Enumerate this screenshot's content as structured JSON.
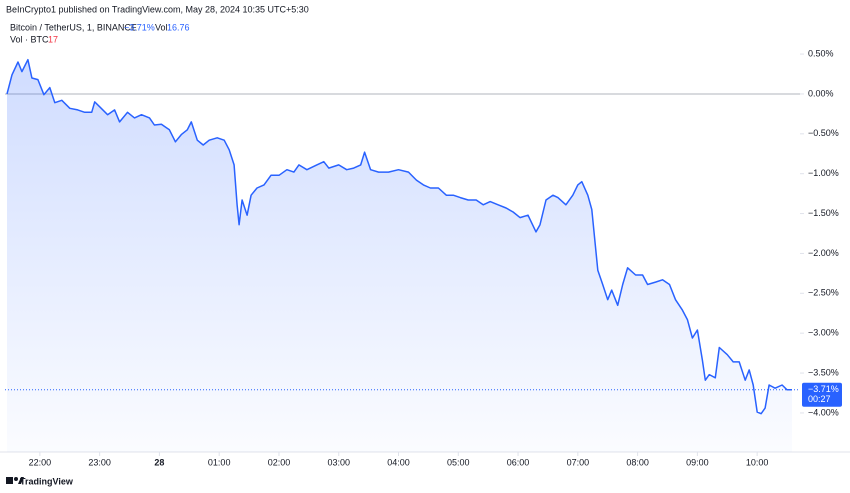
{
  "header": {
    "publisher": "BeInCrypto1 published on TradingView.com, May 28, 2024 10:35 UTC+5:30",
    "symbol": "Bitcoin / TetherUS, 1, BINANCE",
    "change": "−3.71%",
    "vol_label": "Vol",
    "vol_value": "16.76",
    "volume_label": "Vol · BTC",
    "volume_value": "17"
  },
  "chart_data": {
    "type": "area",
    "color": "#2962ff",
    "x": [
      "21:27",
      "21:32",
      "21:38",
      "21:42",
      "21:48",
      "21:52",
      "21:58",
      "22:04",
      "22:10",
      "22:15",
      "22:22",
      "22:30",
      "22:38",
      "22:45",
      "22:52",
      "22:55",
      "23:00",
      "23:08",
      "23:15",
      "23:20",
      "23:28",
      "23:35",
      "23:42",
      "23:50",
      "23:55",
      "00:02",
      "00:10",
      "00:16",
      "00:22",
      "00:28",
      "00:32",
      "00:38",
      "00:44",
      "00:50",
      "00:58",
      "01:05",
      "01:10",
      "01:15",
      "01:18",
      "01:20",
      "01:23",
      "01:28",
      "01:32",
      "01:38",
      "01:45",
      "01:52",
      "02:00",
      "02:08",
      "02:15",
      "02:20",
      "02:28",
      "02:38",
      "02:45",
      "02:50",
      "03:00",
      "03:08",
      "03:15",
      "03:22",
      "03:26",
      "03:32",
      "03:40",
      "03:50",
      "04:00",
      "04:10",
      "04:18",
      "04:25",
      "04:32",
      "04:40",
      "04:48",
      "04:55",
      "05:02",
      "05:10",
      "05:18",
      "05:25",
      "05:32",
      "05:40",
      "05:48",
      "05:55",
      "06:02",
      "06:10",
      "06:18",
      "06:22",
      "06:28",
      "06:35",
      "06:40",
      "06:48",
      "06:55",
      "07:00",
      "07:04",
      "07:10",
      "07:14",
      "07:17",
      "07:20",
      "07:25",
      "07:30",
      "07:34",
      "07:40",
      "07:45",
      "07:50",
      "07:58",
      "08:05",
      "08:10",
      "08:18",
      "08:25",
      "08:32",
      "08:38",
      "08:45",
      "08:50",
      "08:55",
      "09:00",
      "09:05",
      "09:08",
      "09:12",
      "09:18",
      "09:22",
      "09:30",
      "09:36",
      "09:42",
      "09:48",
      "09:52",
      "09:56",
      "10:00",
      "10:04",
      "10:08",
      "10:12",
      "10:18",
      "10:25",
      "10:30",
      "10:35"
    ],
    "values": [
      0.0,
      0.24,
      0.4,
      0.28,
      0.43,
      0.2,
      0.18,
      -0.01,
      0.08,
      -0.11,
      -0.08,
      -0.18,
      -0.2,
      -0.23,
      -0.23,
      -0.1,
      -0.16,
      -0.26,
      -0.2,
      -0.35,
      -0.23,
      -0.3,
      -0.26,
      -0.3,
      -0.39,
      -0.38,
      -0.45,
      -0.6,
      -0.51,
      -0.45,
      -0.35,
      -0.58,
      -0.64,
      -0.58,
      -0.55,
      -0.58,
      -0.7,
      -0.89,
      -1.39,
      -1.64,
      -1.33,
      -1.52,
      -1.27,
      -1.18,
      -1.14,
      -1.02,
      -1.02,
      -0.95,
      -0.98,
      -0.89,
      -0.95,
      -0.89,
      -0.85,
      -0.93,
      -0.89,
      -0.95,
      -0.93,
      -0.89,
      -0.73,
      -0.95,
      -0.98,
      -0.98,
      -0.95,
      -0.98,
      -1.08,
      -1.14,
      -1.18,
      -1.18,
      -1.27,
      -1.27,
      -1.3,
      -1.33,
      -1.33,
      -1.39,
      -1.35,
      -1.39,
      -1.43,
      -1.48,
      -1.55,
      -1.52,
      -1.73,
      -1.64,
      -1.33,
      -1.27,
      -1.3,
      -1.39,
      -1.27,
      -1.14,
      -1.1,
      -1.27,
      -1.45,
      -1.83,
      -2.21,
      -2.39,
      -2.58,
      -2.46,
      -2.65,
      -2.39,
      -2.18,
      -2.27,
      -2.27,
      -2.39,
      -2.36,
      -2.33,
      -2.39,
      -2.58,
      -2.71,
      -2.83,
      -3.06,
      -2.96,
      -3.34,
      -3.59,
      -3.52,
      -3.56,
      -3.18,
      -3.27,
      -3.36,
      -3.36,
      -3.59,
      -3.46,
      -3.65,
      -3.99,
      -4.01,
      -3.94,
      -3.65,
      -3.69,
      -3.65,
      -3.71,
      -3.71
    ],
    "xlim": [
      "21:25",
      "10:40"
    ],
    "xticks": [
      {
        "value": "22:00",
        "label": "22:00"
      },
      {
        "value": "23:00",
        "label": "23:00"
      },
      {
        "value": "00:00",
        "label": "28"
      },
      {
        "value": "01:00",
        "label": "01:00"
      },
      {
        "value": "02:00",
        "label": "02:00"
      },
      {
        "value": "03:00",
        "label": "03:00"
      },
      {
        "value": "04:00",
        "label": "04:00"
      },
      {
        "value": "05:00",
        "label": "05:00"
      },
      {
        "value": "06:00",
        "label": "06:00"
      },
      {
        "value": "07:00",
        "label": "07:00"
      },
      {
        "value": "08:00",
        "label": "08:00"
      },
      {
        "value": "09:00",
        "label": "09:00"
      },
      {
        "value": "10:00",
        "label": "10:00"
      }
    ],
    "ylim": [
      -4.49,
      0.99
    ],
    "yticks": [
      {
        "value": 0.5,
        "label": "0.50%"
      },
      {
        "value": 0,
        "label": "0.00%"
      },
      {
        "value": -0.5,
        "label": "−0.50%"
      },
      {
        "value": -1,
        "label": "−1.00%"
      },
      {
        "value": -1.5,
        "label": "−1.50%"
      },
      {
        "value": -2,
        "label": "−2.00%"
      },
      {
        "value": -2.5,
        "label": "−2.50%"
      },
      {
        "value": -3,
        "label": "−3.00%"
      },
      {
        "value": -3.5,
        "label": "−3.50%"
      },
      {
        "value": -4,
        "label": "−4.00%"
      }
    ],
    "last_value": {
      "value": -3.71,
      "label": "−3.71%"
    },
    "countdown": "00:27"
  },
  "footer": {
    "brand": "TradingView"
  }
}
